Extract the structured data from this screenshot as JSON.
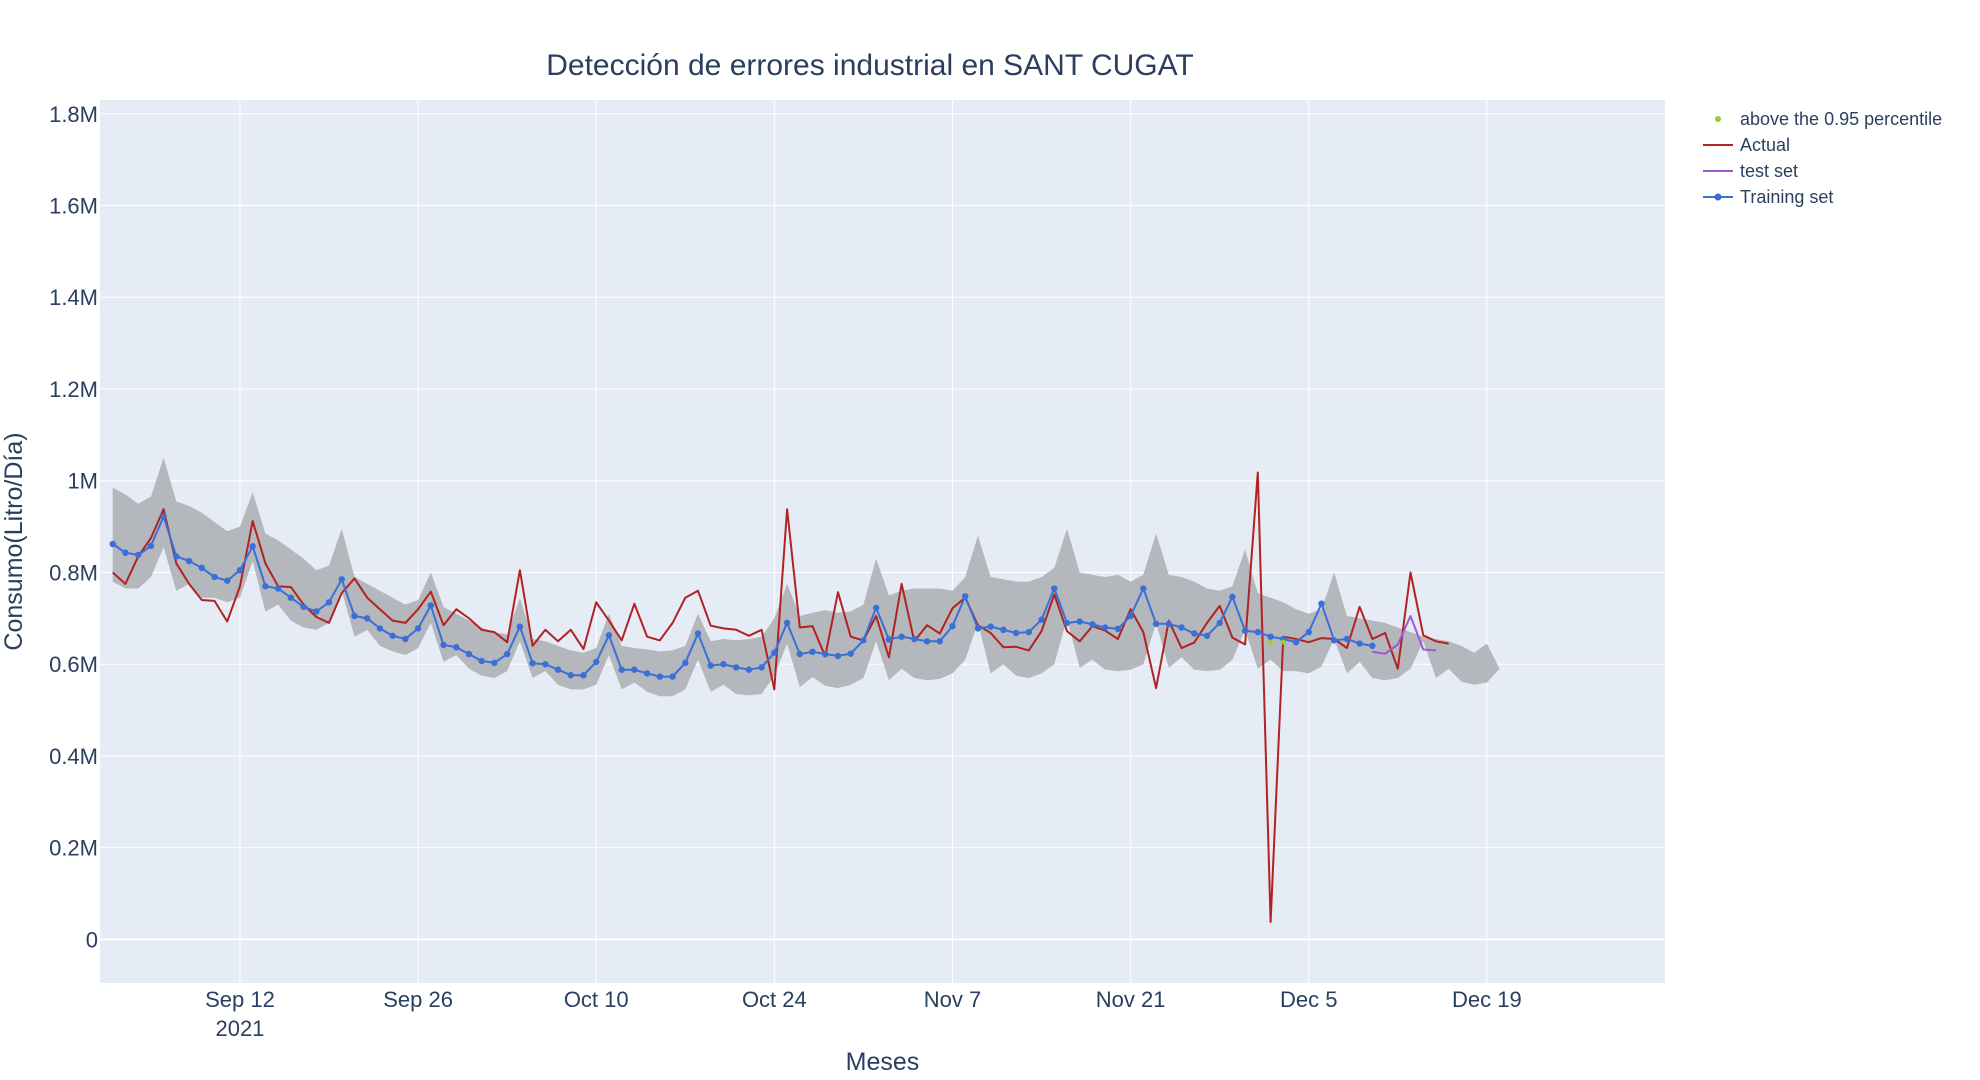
{
  "chart_data": {
    "type": "line",
    "title": "Detección de errores industrial en SANT CUGAT",
    "xlabel": "Meses",
    "ylabel": "Consumo(Litro/Día)",
    "x_start": "2021-09-02",
    "x_tick_labels": [
      "Sep 12",
      "Sep 26",
      "Oct 10",
      "Oct 24",
      "Nov 7",
      "Nov 21",
      "Dec 5",
      "Dec 19"
    ],
    "x_tick_dates": [
      "2021-09-12",
      "2021-09-26",
      "2021-10-10",
      "2021-10-24",
      "2021-11-07",
      "2021-11-21",
      "2021-12-05",
      "2021-12-19"
    ],
    "x_year_label": "2021",
    "xlim": [
      "2021-09-01",
      "2022-01-02"
    ],
    "y_tick_labels": [
      "0",
      "0.2M",
      "0.4M",
      "0.6M",
      "0.8M",
      "1M",
      "1.2M",
      "1.4M",
      "1.6M",
      "1.8M"
    ],
    "y_tick_values": [
      0,
      200000,
      400000,
      600000,
      800000,
      1000000,
      1200000,
      1400000,
      1600000,
      1800000
    ],
    "ylim": [
      -95000,
      1830000
    ],
    "grid": true,
    "legend_position": "top-right",
    "colors": {
      "plot_bg": "#e5ecf6",
      "band": "#b4b7bb",
      "actual": "#b22222",
      "test": "#9b59d6",
      "training": "#3a6fd8",
      "anomaly": "#9acd32"
    },
    "legend": [
      {
        "key": "anomaly",
        "label": "above the 0.95 percentile"
      },
      {
        "key": "actual",
        "label": "Actual"
      },
      {
        "key": "test",
        "label": "test set"
      },
      {
        "key": "training",
        "label": "Training set"
      }
    ],
    "band_upper": [
      985000,
      970000,
      950000,
      965000,
      1050000,
      955000,
      945000,
      930000,
      910000,
      890000,
      900000,
      975000,
      885000,
      870000,
      850000,
      830000,
      805000,
      815000,
      895000,
      790000,
      775000,
      760000,
      745000,
      730000,
      740000,
      800000,
      725000,
      710000,
      695000,
      680000,
      670000,
      665000,
      745000,
      655000,
      650000,
      640000,
      630000,
      625000,
      635000,
      710000,
      640000,
      635000,
      632000,
      628000,
      630000,
      640000,
      710000,
      650000,
      655000,
      652000,
      655000,
      660000,
      700000,
      775000,
      705000,
      712000,
      718000,
      712000,
      715000,
      730000,
      830000,
      750000,
      760000,
      765000,
      765000,
      765000,
      760000,
      790000,
      880000,
      790000,
      785000,
      780000,
      780000,
      790000,
      810000,
      895000,
      800000,
      795000,
      790000,
      795000,
      780000,
      795000,
      885000,
      795000,
      790000,
      780000,
      765000,
      760000,
      770000,
      850000,
      755000,
      745000,
      735000,
      720000,
      710000,
      720000,
      800000,
      705000,
      700000,
      695000,
      690000,
      680000,
      670000,
      660000,
      655000,
      650000,
      640000,
      625000,
      645000
    ],
    "band_lower": [
      780000,
      765000,
      765000,
      790000,
      855000,
      760000,
      775000,
      745000,
      745000,
      735000,
      745000,
      825000,
      715000,
      730000,
      695000,
      680000,
      675000,
      690000,
      760000,
      660000,
      675000,
      640000,
      628000,
      620000,
      635000,
      690000,
      605000,
      620000,
      590000,
      575000,
      570000,
      585000,
      650000,
      570000,
      585000,
      555000,
      545000,
      545000,
      555000,
      620000,
      545000,
      560000,
      540000,
      530000,
      530000,
      545000,
      610000,
      540000,
      555000,
      535000,
      532000,
      535000,
      575000,
      645000,
      550000,
      572000,
      553000,
      548000,
      555000,
      570000,
      650000,
      565000,
      590000,
      570000,
      565000,
      568000,
      580000,
      610000,
      690000,
      580000,
      600000,
      575000,
      570000,
      580000,
      600000,
      700000,
      592000,
      610000,
      588000,
      585000,
      588000,
      600000,
      690000,
      592000,
      615000,
      588000,
      585000,
      588000,
      610000,
      675000,
      590000,
      610000,
      585000,
      585000,
      580000,
      595000,
      655000,
      580000,
      605000,
      570000,
      565000,
      570000,
      590000,
      650000,
      570000,
      590000,
      562000,
      555000,
      560000,
      590000
    ],
    "series": [
      {
        "name": "Actual",
        "values": [
          800000,
          775000,
          835000,
          875000,
          938000,
          820000,
          775000,
          740000,
          738000,
          693000,
          770000,
          912000,
          820000,
          770000,
          768000,
          730000,
          703000,
          690000,
          755000,
          787000,
          745000,
          720000,
          695000,
          690000,
          720000,
          758000,
          685000,
          720000,
          700000,
          675000,
          670000,
          648000,
          805000,
          640000,
          675000,
          650000,
          675000,
          633000,
          735000,
          695000,
          652000,
          732000,
          660000,
          652000,
          690000,
          745000,
          760000,
          684000,
          678000,
          675000,
          662000,
          675000,
          545000,
          938000,
          680000,
          683000,
          617000,
          757000,
          660000,
          652000,
          705000,
          615000,
          775000,
          650000,
          685000,
          667000,
          722000,
          745000,
          685000,
          668000,
          637000,
          638000,
          630000,
          672000,
          752000,
          672000,
          650000,
          683000,
          673000,
          655000,
          720000,
          670000,
          548000,
          695000,
          635000,
          647000,
          690000,
          727000,
          658000,
          643000,
          1018000,
          38000,
          660000,
          655000,
          648000,
          657000,
          655000,
          635000,
          725000,
          655000,
          668000,
          590000,
          800000,
          663000,
          650000,
          645000
        ]
      },
      {
        "name": "Training set",
        "values": [
          862000,
          843000,
          838000,
          858000,
          922000,
          835000,
          825000,
          810000,
          790000,
          782000,
          805000,
          857000,
          770000,
          765000,
          745000,
          725000,
          715000,
          735000,
          785000,
          705000,
          700000,
          678000,
          662000,
          655000,
          678000,
          728000,
          642000,
          637000,
          622000,
          607000,
          603000,
          622000,
          682000,
          602000,
          600000,
          588000,
          576000,
          576000,
          605000,
          663000,
          588000,
          588000,
          580000,
          573000,
          573000,
          603000,
          667000,
          597000,
          600000,
          593000,
          588000,
          593000,
          625000,
          690000,
          622000,
          627000,
          622000,
          618000,
          623000,
          652000,
          723000,
          654000,
          660000,
          655000,
          650000,
          650000,
          683000,
          748000,
          678000,
          682000,
          675000,
          668000,
          670000,
          697000,
          765000,
          690000,
          693000,
          687000,
          680000,
          677000,
          705000,
          765000,
          688000,
          688000,
          680000,
          667000,
          662000,
          690000,
          747000,
          673000,
          670000,
          660000,
          655000,
          648000,
          670000,
          732000,
          652000,
          655000,
          645000,
          640000
        ]
      },
      {
        "name": "test set",
        "offset": 99,
        "values": [
          627000,
          623000,
          643000,
          705000,
          632000,
          630000
        ]
      },
      {
        "name": "above the 0.95 percentile",
        "x": [
          91,
          92
        ],
        "values": [
          648000,
          648000
        ]
      }
    ]
  }
}
